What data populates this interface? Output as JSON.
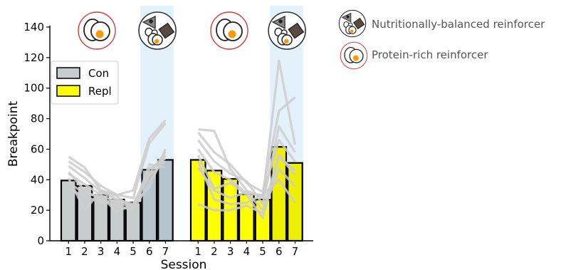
{
  "chart_data": {
    "type": "bar",
    "xlabel": "Session",
    "ylabel": "Breakpoint",
    "ylim": [
      0,
      145
    ],
    "yticks": [
      0,
      20,
      40,
      60,
      80,
      100,
      120,
      140
    ],
    "grid": false,
    "legend": {
      "placement": "top-left",
      "entries": [
        {
          "name": "Con",
          "color": "#c8cccc"
        },
        {
          "name": "Repl",
          "color": "#ffff00"
        }
      ]
    },
    "groups": [
      {
        "name": "Con",
        "color": "#c8cccc",
        "highlight_color": "#b5c3cc",
        "categories": [
          "1",
          "2",
          "3",
          "4",
          "5",
          "6",
          "7"
        ],
        "values": [
          39.5,
          36,
          30,
          27,
          25,
          46.5,
          53
        ],
        "highlighted": [
          "6",
          "7"
        ],
        "top_icon": {
          "over_sessions": [
            "1",
            "2",
            "3",
            "4",
            "5"
          ],
          "icon": "protein-rich-reinforcer-icon"
        },
        "highlight_icon": {
          "over_sessions": [
            "6",
            "7"
          ],
          "icon": "nutritionally-balanced-reinforcer-icon"
        },
        "individual_lines": [
          [
            55,
            48,
            33,
            30,
            33,
            67,
            79
          ],
          [
            52,
            45,
            36,
            30,
            28,
            64,
            77
          ],
          [
            49,
            41,
            32,
            27,
            24,
            44,
            58
          ],
          [
            45,
            33,
            27,
            23,
            20,
            38,
            56
          ],
          [
            44,
            37,
            30,
            25,
            22,
            43,
            52
          ],
          [
            41,
            20,
            33,
            29,
            21,
            50,
            48
          ],
          [
            38,
            31,
            29,
            19,
            24,
            35,
            60
          ],
          [
            34,
            29,
            25,
            27,
            23,
            47,
            54
          ]
        ]
      },
      {
        "name": "Repl",
        "color": "#ffff00",
        "highlight_color": "#eef000",
        "categories": [
          "1",
          "2",
          "3",
          "4",
          "5",
          "6",
          "7"
        ],
        "values": [
          53,
          46,
          40.5,
          30.5,
          27,
          61.5,
          51
        ],
        "highlighted": [
          "6",
          "7"
        ],
        "top_icon": {
          "over_sessions": [
            "1",
            "2",
            "3",
            "4",
            "5"
          ],
          "icon": "protein-rich-reinforcer-icon"
        },
        "highlight_icon": {
          "over_sessions": [
            "6",
            "7"
          ],
          "icon": "nutritionally-balanced-reinforcer-icon"
        },
        "individual_lines": [
          [
            73,
            72,
            47,
            33,
            28,
            118,
            63
          ],
          [
            71,
            58,
            50,
            38,
            32,
            85,
            94
          ],
          [
            66,
            52,
            44,
            39,
            24,
            75,
            58
          ],
          [
            60,
            45,
            40,
            31,
            30,
            66,
            52
          ],
          [
            56,
            34,
            38,
            30,
            15,
            55,
            46
          ],
          [
            48,
            33,
            28,
            32,
            20,
            56,
            43
          ],
          [
            24,
            20,
            20,
            23,
            18,
            47,
            36
          ],
          [
            52,
            27,
            24,
            25,
            30,
            40,
            25
          ]
        ]
      }
    ]
  },
  "key": [
    {
      "icon": "nutritionally-balanced-reinforcer-icon",
      "label": "Nutritionally-balanced reinforcer"
    },
    {
      "icon": "protein-rich-reinforcer-icon",
      "label": "Protein-rich reinforcer"
    }
  ]
}
